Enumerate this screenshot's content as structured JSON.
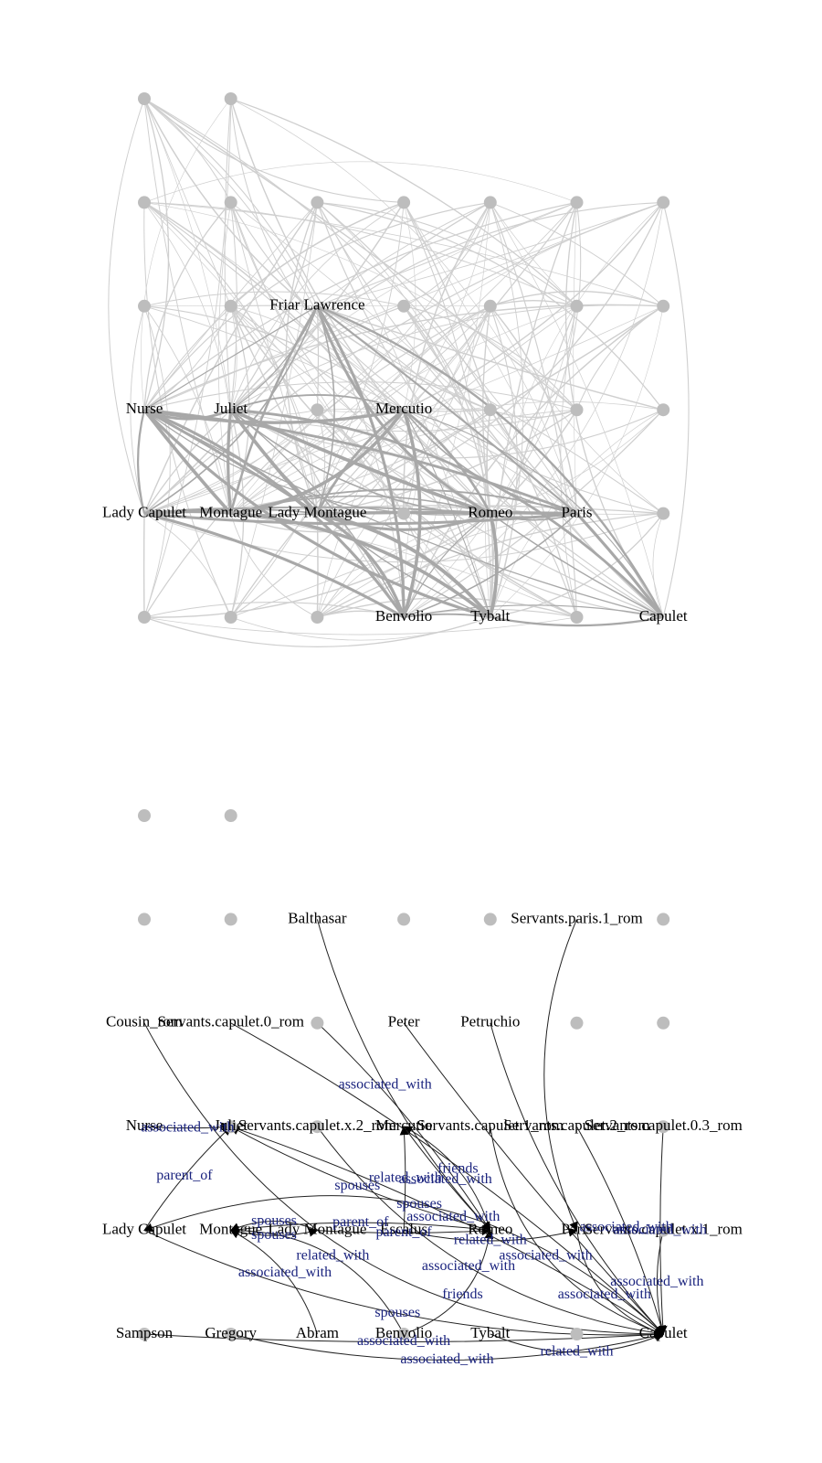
{
  "colors": {
    "node": "#bdbdbd",
    "edge_top": "#a8a8a8",
    "edge_bottom": "#222222",
    "arrow": "#000000",
    "node_label": "#000000",
    "edge_label": "#1a237e"
  },
  "top_graph": {
    "grid_nodes": [
      [
        0,
        0
      ],
      [
        1,
        0
      ],
      [
        0,
        1
      ],
      [
        1,
        1
      ],
      [
        2,
        1
      ],
      [
        3,
        1
      ],
      [
        4,
        1
      ],
      [
        5,
        1
      ],
      [
        6,
        1
      ],
      [
        0,
        2
      ],
      [
        1,
        2
      ],
      [
        3,
        2
      ],
      [
        4,
        2
      ],
      [
        5,
        2
      ],
      [
        6,
        2
      ],
      [
        2,
        3
      ],
      [
        4,
        3
      ],
      [
        5,
        3
      ],
      [
        6,
        3
      ],
      [
        3,
        4
      ],
      [
        6,
        4
      ],
      [
        0,
        5
      ],
      [
        1,
        5
      ],
      [
        2,
        5
      ],
      [
        5,
        5
      ]
    ],
    "labeled_nodes": [
      {
        "name": "Friar Lawrence",
        "col": 2,
        "row": 2
      },
      {
        "name": "Nurse",
        "col": 0,
        "row": 3
      },
      {
        "name": "Juliet",
        "col": 1,
        "row": 3
      },
      {
        "name": "Mercutio",
        "col": 3,
        "row": 3
      },
      {
        "name": "Lady Capulet",
        "col": 0,
        "row": 4
      },
      {
        "name": "Montague",
        "col": 1,
        "row": 4
      },
      {
        "name": "Lady Montague",
        "col": 2,
        "row": 4
      },
      {
        "name": "Romeo",
        "col": 4,
        "row": 4
      },
      {
        "name": "Paris",
        "col": 5,
        "row": 4
      },
      {
        "name": "Benvolio",
        "col": 3,
        "row": 5
      },
      {
        "name": "Tybalt",
        "col": 4,
        "row": 5
      },
      {
        "name": "Capulet",
        "col": 6,
        "row": 5
      }
    ]
  },
  "bottom_graph": {
    "grid_nodes": [
      [
        0,
        0
      ],
      [
        1,
        0
      ],
      [
        0,
        1
      ],
      [
        1,
        1
      ],
      [
        3,
        1
      ],
      [
        4,
        1
      ],
      [
        6,
        1
      ],
      [
        2,
        2
      ],
      [
        5,
        2
      ],
      [
        6,
        2
      ],
      [
        1,
        3
      ],
      [
        2,
        3
      ],
      [
        6,
        3
      ],
      [
        6,
        4
      ],
      [
        0,
        5
      ],
      [
        1,
        5
      ],
      [
        3,
        5
      ],
      [
        5,
        5
      ]
    ],
    "labeled_nodes": [
      {
        "name": "Balthasar",
        "col": 2,
        "row": 1
      },
      {
        "name": "Servants.paris.1_rom",
        "col": 5,
        "row": 1
      },
      {
        "name": "Cousin_rom",
        "col": 0,
        "row": 2
      },
      {
        "name": "Servants.capulet.0_rom",
        "col": 1,
        "row": 2
      },
      {
        "name": "Peter",
        "col": 3,
        "row": 2
      },
      {
        "name": "Petruchio",
        "col": 4,
        "row": 2
      },
      {
        "name": "Nurse",
        "col": 0,
        "row": 3
      },
      {
        "name": "Juliet",
        "col": 1,
        "row": 3
      },
      {
        "name": "Servants.capulet.x.2_rom",
        "col": 2,
        "row": 3
      },
      {
        "name": "Mercutio",
        "col": 3,
        "row": 3
      },
      {
        "name": "Servants.capulet.1_rom",
        "col": 4,
        "row": 3
      },
      {
        "name": "Servants.capulet.2_rom",
        "col": 5,
        "row": 3
      },
      {
        "name": "Servants.capulet.0.3_rom",
        "col": 6,
        "row": 3
      },
      {
        "name": "Lady Capulet",
        "col": 0,
        "row": 4
      },
      {
        "name": "Montague",
        "col": 1,
        "row": 4
      },
      {
        "name": "Lady Montague",
        "col": 2,
        "row": 4
      },
      {
        "name": "Escalus",
        "col": 3,
        "row": 4
      },
      {
        "name": "Romeo",
        "col": 4,
        "row": 4
      },
      {
        "name": "Paris",
        "col": 5,
        "row": 4
      },
      {
        "name": "Servants.capulet.x.1_rom",
        "col": 6,
        "row": 4
      },
      {
        "name": "Sampson",
        "col": 0,
        "row": 5
      },
      {
        "name": "Gregory",
        "col": 1,
        "row": 5
      },
      {
        "name": "Abram",
        "col": 2,
        "row": 5
      },
      {
        "name": "Benvolio",
        "col": 3,
        "row": 5
      },
      {
        "name": "Tybalt",
        "col": 4,
        "row": 5
      },
      {
        "name": "Capulet",
        "col": 6,
        "row": 5
      }
    ],
    "edges": [
      {
        "from": "Lady Capulet",
        "to": "Juliet",
        "label": "parent_of"
      },
      {
        "from": "Nurse",
        "to": "Juliet",
        "label": "associated_with"
      },
      {
        "from": "Balthasar",
        "to": "Romeo",
        "label": "associated_with"
      },
      {
        "from": "Servants.paris.1_rom",
        "to": "Paris",
        "label": ""
      },
      {
        "from": "Cousin_rom",
        "to": "Capulet",
        "label": ""
      },
      {
        "from": "Servants.capulet.0_rom",
        "to": "Capulet",
        "label": ""
      },
      {
        "from": "Peter",
        "to": "Capulet",
        "label": ""
      },
      {
        "from": "Petruchio",
        "to": "Capulet",
        "label": ""
      },
      {
        "from": "Servants.capulet.x.2_rom",
        "to": "Capulet",
        "label": "associated_with"
      },
      {
        "from": "Servants.capulet.1_rom",
        "to": "Capulet",
        "label": "associated_with"
      },
      {
        "from": "Servants.capulet.2_rom",
        "to": "Capulet",
        "label": "associated_with"
      },
      {
        "from": "Servants.capulet.0.3_rom",
        "to": "Capulet",
        "label": "associated_with"
      },
      {
        "from": "Servants.capulet.x.1_rom",
        "to": "Capulet",
        "label": "associated_with"
      },
      {
        "from": "Romeo",
        "to": "Mercutio",
        "label": "friends"
      },
      {
        "from": "Benvolio",
        "to": "Romeo",
        "label": "friends"
      },
      {
        "from": "Montague",
        "to": "Romeo",
        "label": "parent_of"
      },
      {
        "from": "Lady Montague",
        "to": "Romeo",
        "label": "parent_of"
      },
      {
        "from": "Montague",
        "to": "Lady Montague",
        "label": "spouses"
      },
      {
        "from": "Lady Montague",
        "to": "Montague",
        "label": "spouses"
      },
      {
        "from": "Capulet",
        "to": "Lady Capulet",
        "label": "spouses"
      },
      {
        "from": "Romeo",
        "to": "Juliet",
        "label": "spouses"
      },
      {
        "from": "Escalus",
        "to": "Mercutio",
        "label": "related_with"
      },
      {
        "from": "Escalus",
        "to": "Paris",
        "label": "related_with"
      },
      {
        "from": "Tybalt",
        "to": "Capulet",
        "label": "related_with"
      },
      {
        "from": "Benvolio",
        "to": "Montague",
        "label": "related_with"
      },
      {
        "from": "Juliet",
        "to": "Capulet",
        "label": "associated_with"
      },
      {
        "from": "Sampson",
        "to": "Capulet",
        "label": "associated_with"
      },
      {
        "from": "Gregory",
        "to": "Capulet",
        "label": "associated_with"
      },
      {
        "from": "Abram",
        "to": "Montague",
        "label": "associated_with"
      },
      {
        "from": "Paris",
        "to": "Capulet",
        "label": "associated_with"
      },
      {
        "from": "Friar Lawrence",
        "to": "Romeo",
        "label": ""
      },
      {
        "from": "Mercutio",
        "to": "Romeo",
        "label": "associated_with"
      },
      {
        "from": "Lady Capulet",
        "to": "Capulet",
        "label": "spouses"
      }
    ]
  }
}
